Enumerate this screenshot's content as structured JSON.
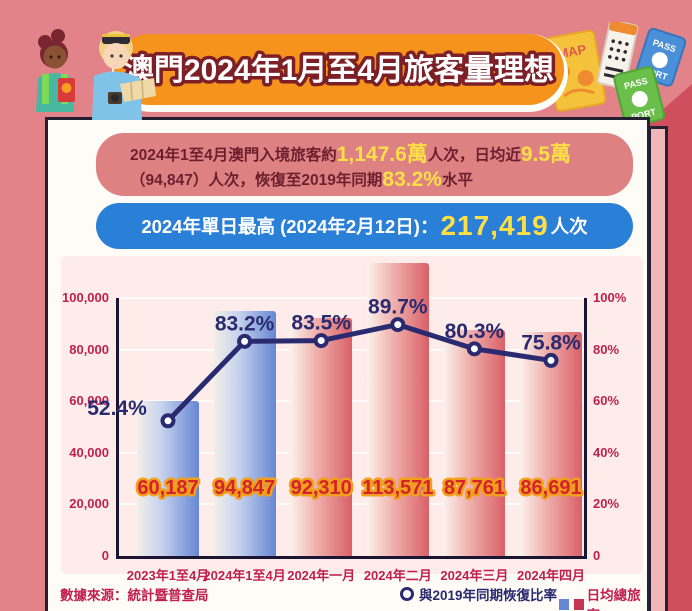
{
  "header": {
    "title": "澳門2024年1月至4月旅客量理想"
  },
  "decor": {
    "map": "MAP",
    "pass": "PASS",
    "port": "PORT"
  },
  "summary": {
    "l1a": "2024年1至4月澳門入境旅客約",
    "l1b": "1,147.6萬",
    "l1c": "人次，日均近",
    "l1d": "9.5萬",
    "l2a": "（94,847）人次，恢復至2019年同期",
    "l2b": "83.2%",
    "l2c": "水平"
  },
  "record": {
    "label": "2024年單日最高 (2024年2月12日)：",
    "value": "217,419",
    "unit": "人次"
  },
  "chart_data": {
    "type": "bar+line",
    "categories": [
      "2023年1至4月",
      "2024年1至4月",
      "2024年一月",
      "2024年二月",
      "2024年三月",
      "2024年四月"
    ],
    "series": [
      {
        "name": "日均總旅客",
        "type": "bar",
        "values": [
          60187,
          94847,
          92310,
          113571,
          87761,
          86691
        ],
        "labels": [
          "60,187",
          "94,847",
          "92,310",
          "113,571",
          "87,761",
          "86,691"
        ],
        "colors": [
          "blue",
          "blue",
          "red",
          "red",
          "red",
          "red"
        ]
      },
      {
        "name": "與2019年同期恢復比率",
        "type": "line",
        "values": [
          52.4,
          83.2,
          83.5,
          89.7,
          80.3,
          75.8
        ],
        "labels": [
          "52.4%",
          "83.2%",
          "83.5%",
          "89.7%",
          "80.3%",
          "75.8%"
        ]
      }
    ],
    "left_axis": {
      "max": 100000,
      "ticks": [
        0,
        20000,
        40000,
        60000,
        80000,
        100000
      ],
      "tick_labels": [
        "0",
        "20,000",
        "40,000",
        "60,000",
        "80,000",
        "100,000"
      ]
    },
    "right_axis": {
      "max": 100,
      "ticks": [
        0,
        20,
        40,
        60,
        80,
        100
      ],
      "tick_labels": [
        "0",
        "20%",
        "40%",
        "60%",
        "80%",
        "100%"
      ]
    },
    "grid": true,
    "legend_position": "bottom-right"
  },
  "footer": {
    "source": "數據來源：統計暨普查局",
    "legend_line": "與2019年同期恢復比率",
    "legend_bars": "日均總旅客"
  },
  "colors": {
    "page_bg": "#e28289",
    "deep_red": "#d04f5e",
    "card_bg": "#fffcf7",
    "banner_orange": "#f6931d",
    "title_outline": "#7c1f27",
    "panel_pink": "#dd8183",
    "panel_text": "#6d1f2d",
    "highlight_yellow": "#ffdf45",
    "pill_blue": "#2a7fd6",
    "chart_bg": "#fdecea",
    "axis_crimson": "#c02050",
    "line_navy": "#2a2a70",
    "bar_blue": "#6687d3",
    "bar_red": "#d96067",
    "value_red": "#d4232a",
    "value_outline": "#f39f1e"
  }
}
